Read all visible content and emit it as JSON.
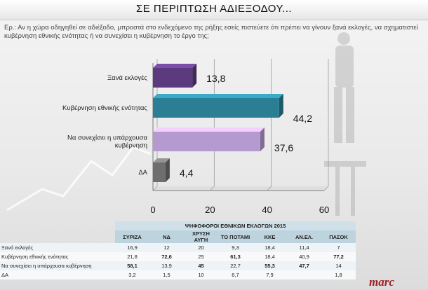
{
  "title": "ΣΕ ΠΕΡΙΠΤΩΣΗ ΑΔΙΕΞΟΔΟΥ...",
  "question": "Ερ.: Αν η χώρα οδηγηθεί σε αδιέξοδο, μπροστά στο ενδεχόμενο της ρήξης εσείς πιστεύετε ότι πρέπει να γίνουν ξανά εκλογές, να σχηματιστεί κυβέρνηση εθνικής ενότητας ή να συνεχίσει η κυβέρνηση το έργο της;",
  "chart_data": {
    "type": "bar",
    "orientation": "horizontal",
    "categories": [
      "Ξανά εκλογές",
      "Κυβέρνηση εθνικής ενότητας",
      "Να συνεχίσει η υπάρχουσα κυβέρνηση",
      "ΔΑ"
    ],
    "values": [
      13.8,
      44.2,
      37.6,
      4.4
    ],
    "value_labels": [
      "13,8",
      "44,2",
      "37,6",
      "4,4"
    ],
    "colors": [
      "#5b3a7e",
      "#2a7f95",
      "#b59ad0",
      "#6e6e6e"
    ],
    "xlim": [
      0,
      60
    ],
    "xticks": [
      "0",
      "20",
      "40",
      "60"
    ],
    "grid": true
  },
  "table": {
    "caption": "ΨΗΦΟΦΟΡΟΙ ΕΘΝΙΚΩΝ ΕΚΛΟΓΩΝ 2015",
    "columns": [
      "ΣΥΡΙΖΑ",
      "ΝΔ",
      "ΧΡΥΣΗ ΑΥΓΗ",
      "ΤΟ ΠΟΤΑΜΙ",
      "ΚΚΕ",
      "ΑΝ.ΕΛ.",
      "ΠΑΣΟΚ"
    ],
    "rows": [
      {
        "label": "Ξανά εκλογές",
        "cells": [
          "16,9",
          "12",
          "20",
          "9,3",
          "18,4",
          "11,4",
          "7"
        ],
        "bold": []
      },
      {
        "label": "Κυβέρνηση εθνικής ενότητας",
        "cells": [
          "21,8",
          "72,6",
          "25",
          "61,3",
          "18,4",
          "40,9",
          "77,2"
        ],
        "bold": [
          1,
          3,
          6
        ]
      },
      {
        "label": "Να συνεχίσει η υπάρχουσα κυβέρνηση",
        "cells": [
          "58,1",
          "13,9",
          "45",
          "22,7",
          "55,3",
          "47,7",
          "14"
        ],
        "bold": [
          0,
          2,
          4,
          5
        ]
      },
      {
        "label": "ΔΑ",
        "cells": [
          "3,2",
          "1,5",
          "10",
          "6,7",
          "7,9",
          "",
          "1,8"
        ],
        "bold": []
      }
    ]
  },
  "logo": "marc"
}
